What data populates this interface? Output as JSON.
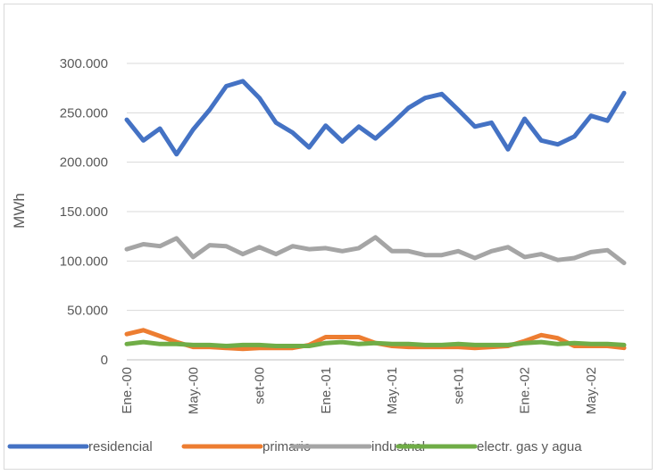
{
  "chart_data": {
    "type": "line",
    "xlabel": "",
    "ylabel": "MWh",
    "ylim": [
      0,
      300000
    ],
    "y_ticks": [
      "0",
      "50.000",
      "100.000",
      "150.000",
      "200.000",
      "250.000",
      "300.000"
    ],
    "grid": "horizontal",
    "legend_position": "bottom",
    "x_tick_labels": [
      "Ene.-00",
      "May.-00",
      "set-00",
      "Ene.-01",
      "May.-01",
      "set-01",
      "Ene.-02",
      "May.-02"
    ],
    "x_tick_every": 4,
    "n_points": 31,
    "series": [
      {
        "name": "residencial",
        "color": "#4472c4",
        "values": [
          243000,
          222000,
          234000,
          208000,
          233000,
          253000,
          277000,
          282000,
          265000,
          240000,
          230000,
          215000,
          237000,
          221000,
          236000,
          224000,
          239000,
          255000,
          265000,
          269000,
          253000,
          236000,
          240000,
          213000,
          244000,
          222000,
          218000,
          226000,
          247000,
          242000,
          270000
        ]
      },
      {
        "name": "primario",
        "color": "#ed7d31",
        "values": [
          26000,
          30000,
          24000,
          18000,
          13000,
          13000,
          12000,
          11000,
          12000,
          12000,
          12000,
          15000,
          23000,
          23000,
          23000,
          17000,
          14000,
          13000,
          13000,
          13000,
          13000,
          12000,
          13000,
          14000,
          19000,
          25000,
          22000,
          14000,
          14000,
          14000,
          12000
        ]
      },
      {
        "name": "industrial",
        "color": "#a5a5a5",
        "values": [
          112000,
          117000,
          115000,
          123000,
          104000,
          116000,
          115000,
          107000,
          114000,
          107000,
          115000,
          112000,
          113000,
          110000,
          113000,
          124000,
          110000,
          110000,
          106000,
          106000,
          110000,
          103000,
          110000,
          114000,
          104000,
          107000,
          101000,
          103000,
          109000,
          111000,
          98000
        ]
      },
      {
        "name": "electr. gas y agua",
        "color": "#70ad47",
        "values": [
          16000,
          18000,
          16000,
          16000,
          15000,
          15000,
          14000,
          15000,
          15000,
          14000,
          14000,
          14000,
          17000,
          18000,
          16000,
          17000,
          16000,
          16000,
          15000,
          15000,
          16000,
          15000,
          15000,
          15000,
          17000,
          18000,
          16000,
          17000,
          16000,
          16000,
          15000
        ]
      }
    ]
  }
}
